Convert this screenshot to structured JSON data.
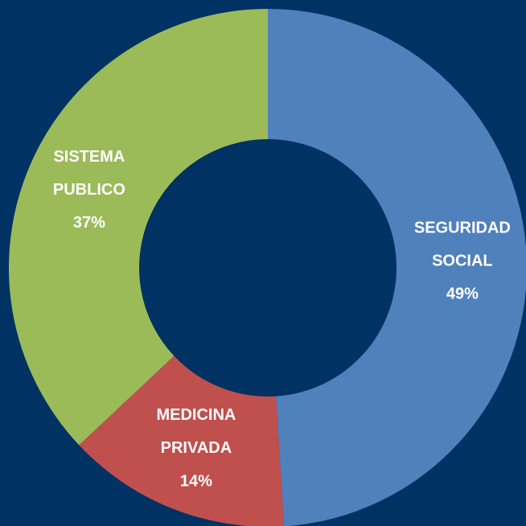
{
  "chart_data": {
    "type": "donut",
    "categories": [
      "SEGURIDAD SOCIAL",
      "MEDICINA PRIVADA",
      "SISTEMA PUBLICO"
    ],
    "values": [
      49,
      14,
      37
    ],
    "value_labels": [
      "49%",
      "14%",
      "37%"
    ],
    "colors": [
      "#4f81bd",
      "#c0504d",
      "#9bbb59"
    ]
  }
}
